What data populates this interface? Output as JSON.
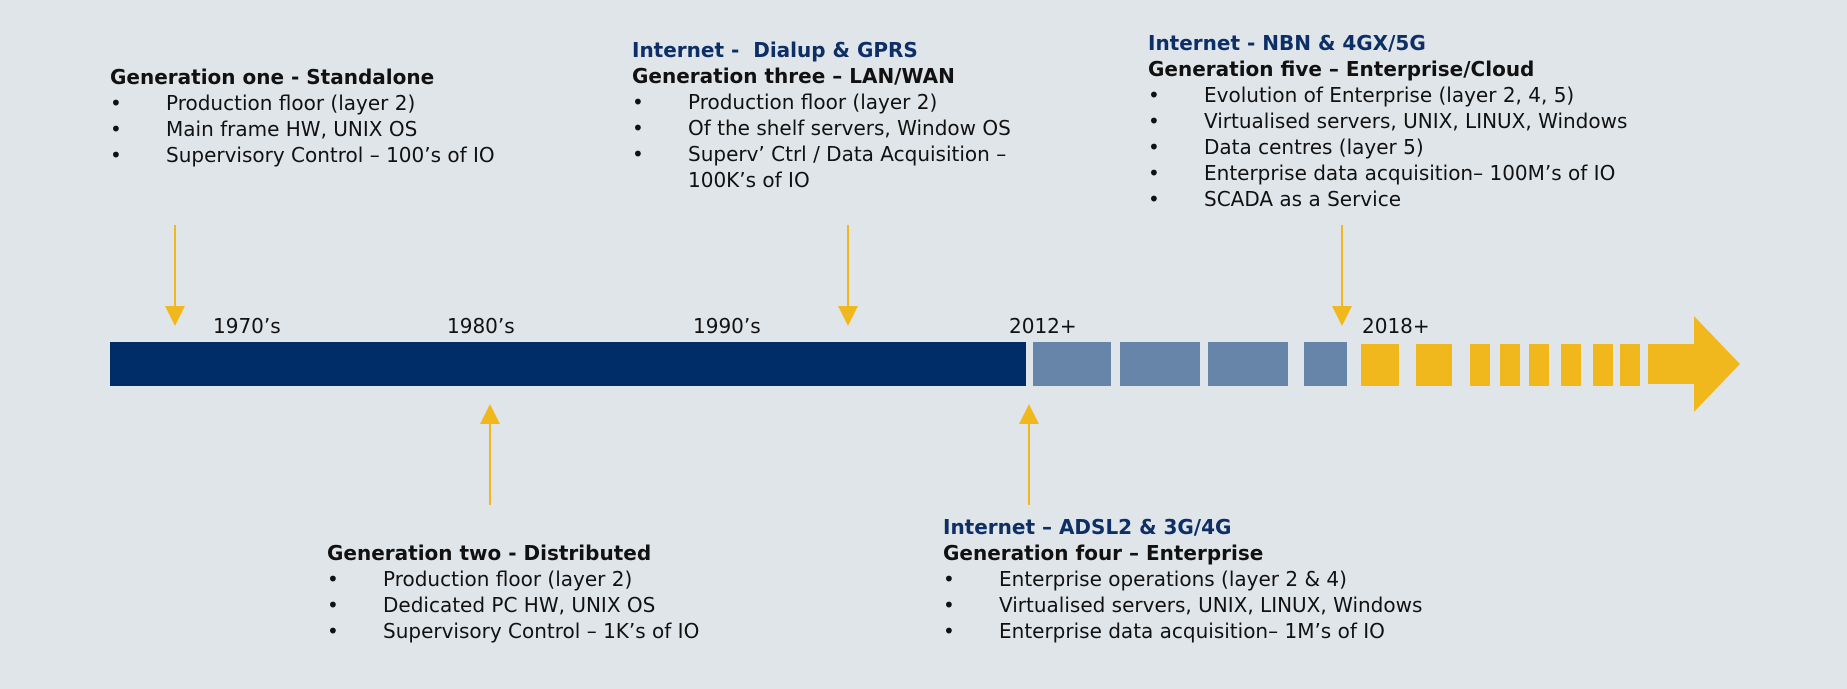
{
  "colors": {
    "background": "#dfe5e9",
    "navy": "#002d67",
    "steel_blue": "#6784a9",
    "gold": "#f1b81d",
    "internet_text": "#0e2f66"
  },
  "timeline": {
    "years": [
      "1970’s",
      "1980’s",
      "1990’s",
      "2012+",
      "2018+"
    ]
  },
  "generations": {
    "one": {
      "internet": "",
      "title": "Generation one - Standalone",
      "bullets": [
        "Production floor (layer 2)",
        "Main frame HW, UNIX OS",
        "Supervisory Control – 100’s of IO"
      ]
    },
    "two": {
      "internet": "",
      "title": "Generation two - Distributed",
      "bullets": [
        "Production floor (layer 2)",
        "Dedicated PC HW, UNIX OS",
        "Supervisory Control – 1K’s of IO"
      ]
    },
    "three": {
      "internet": "Internet -  Dialup & GPRS",
      "title": "Generation three – LAN/WAN",
      "bullets": [
        "Production floor (layer 2)",
        "Of the shelf servers, Window OS",
        "Superv’ Ctrl / Data Acquisition – 100K’s of IO"
      ]
    },
    "four": {
      "internet": "Internet – ADSL2 & 3G/4G",
      "title": "Generation four – Enterprise",
      "bullets": [
        "Enterprise operations (layer 2 & 4)",
        "Virtualised servers, UNIX, LINUX, Windows",
        "Enterprise data acquisition– 1M’s of IO"
      ]
    },
    "five": {
      "internet": "Internet - NBN & 4GX/5G",
      "title": "Generation five – Enterprise/Cloud",
      "bullets": [
        "Evolution of Enterprise (layer 2, 4, 5)",
        "Virtualised servers, UNIX, LINUX, Windows",
        "Data centres (layer 5)",
        "Enterprise data acquisition– 100M’s of IO",
        "SCADA as a Service"
      ]
    }
  },
  "bullet_char": "•"
}
